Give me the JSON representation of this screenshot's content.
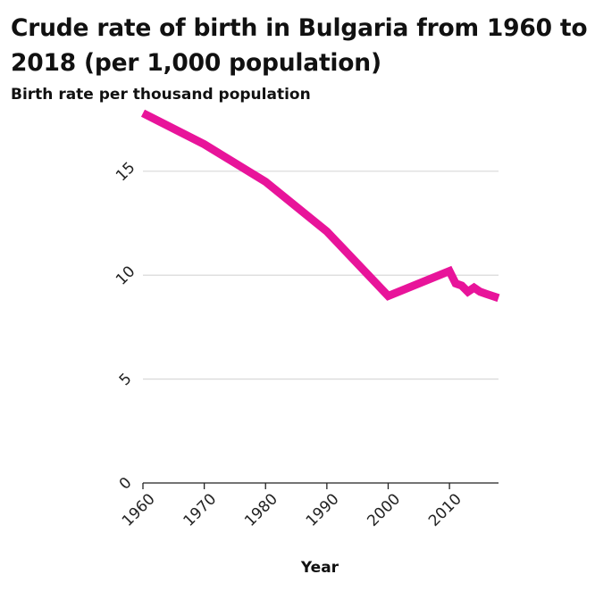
{
  "chart_data": {
    "type": "line",
    "title": "Crude rate of birth in Bulgaria from 1960 to 2018 (per 1,000 population)",
    "ylabel": "Birth rate per thousand population",
    "xlabel": "Year",
    "xlim": [
      1960,
      2018
    ],
    "ylim": [
      0,
      18
    ],
    "x_ticks": [
      1960,
      1970,
      1980,
      1990,
      2000,
      2010
    ],
    "y_ticks": [
      0,
      5,
      10,
      15
    ],
    "grid": "horizontal",
    "line_color": "#e8149a",
    "series": [
      {
        "x": [
          1960,
          1970,
          1980,
          1990,
          2000,
          2010,
          2011,
          2012,
          2013,
          2014,
          2015,
          2016,
          2017,
          2018
        ],
        "values": [
          17.8,
          16.3,
          14.5,
          12.1,
          9.0,
          10.2,
          9.6,
          9.5,
          9.2,
          9.4,
          9.2,
          9.1,
          9.0,
          8.9
        ]
      }
    ]
  }
}
